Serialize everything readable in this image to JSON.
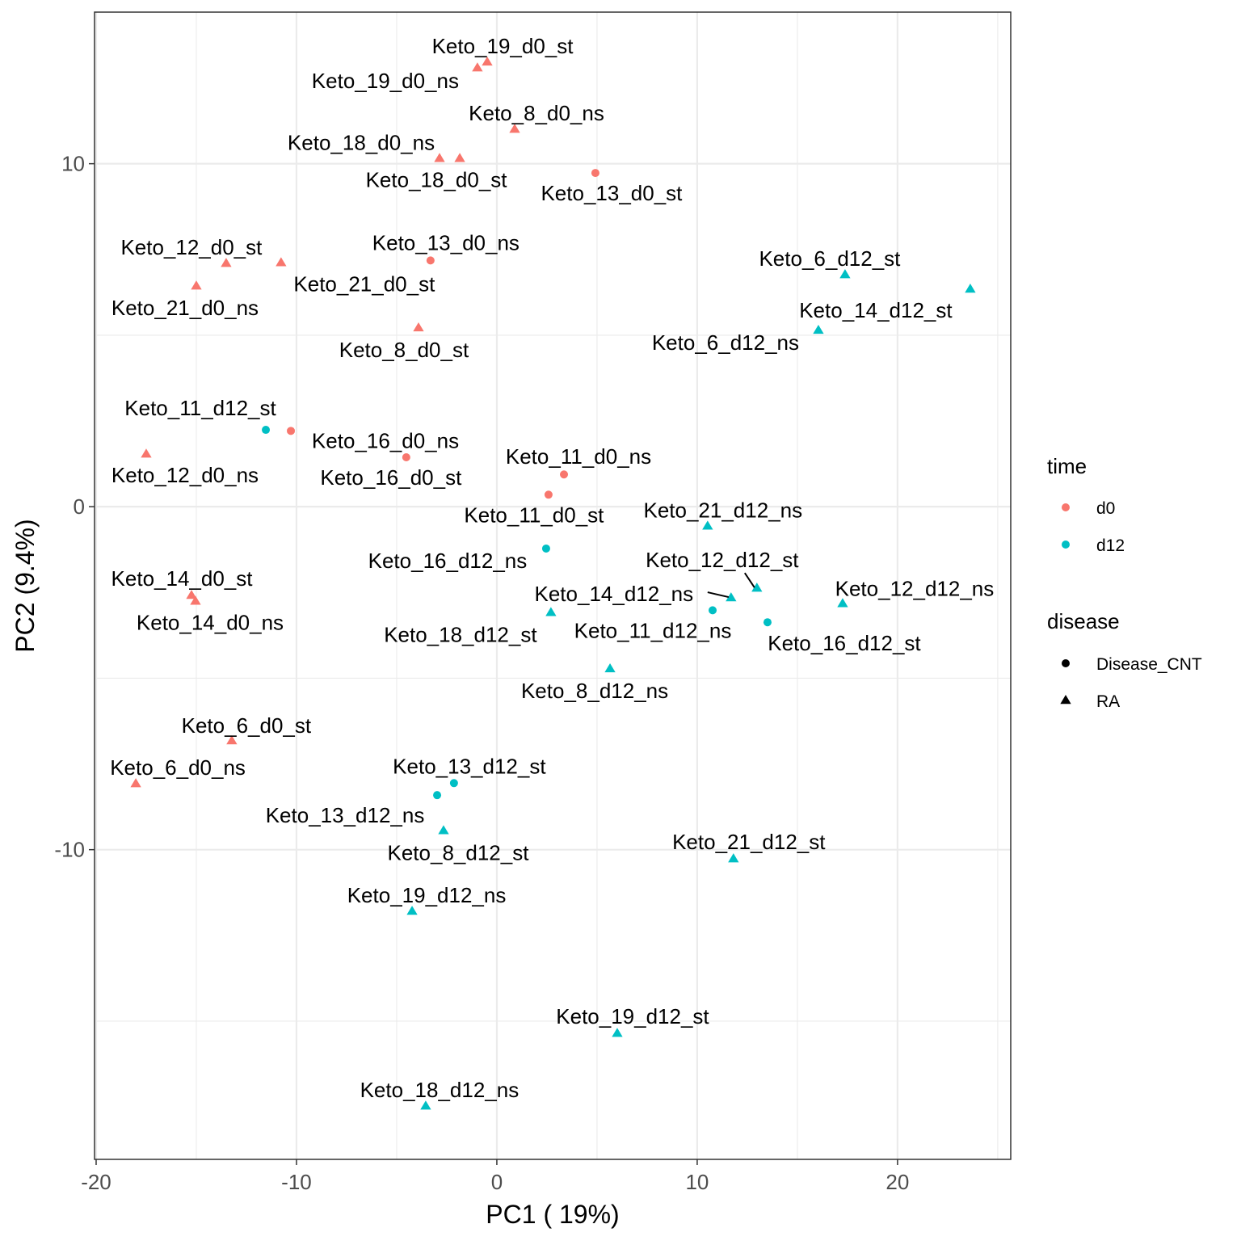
{
  "chart_data": {
    "type": "scatter",
    "title": "",
    "xlabel": "PC1 ( 19%)",
    "ylabel": "PC2 (9.4%)",
    "xlim": [
      -20.08,
      25.65
    ],
    "ylim": [
      -19.03,
      14.42
    ],
    "x_ticks": [
      -20,
      -10,
      0,
      10,
      20
    ],
    "y_ticks": [
      -10,
      0,
      10
    ],
    "grid": true,
    "legend_placement": "right",
    "legends": [
      {
        "title": "time",
        "entries": [
          {
            "label": "d0",
            "color": "#F8766D"
          },
          {
            "label": "d12",
            "color": "#00BFC4"
          }
        ]
      },
      {
        "title": "disease",
        "entries": [
          {
            "label": "Disease_CNT",
            "shape": "circle"
          },
          {
            "label": "RA",
            "shape": "triangle"
          }
        ]
      }
    ],
    "points": [
      {
        "label": "Keto_19_d0_st",
        "x": -0.48,
        "y": 12.96,
        "time": "d0",
        "disease": "RA"
      },
      {
        "label": "Keto_19_d0_ns",
        "x": -0.97,
        "y": 12.79,
        "time": "d0",
        "disease": "RA"
      },
      {
        "label": "Keto_8_d0_ns",
        "x": 0.89,
        "y": 11.0,
        "time": "d0",
        "disease": "RA"
      },
      {
        "label": "Keto_18_d0_ns",
        "x": -2.86,
        "y": 10.15,
        "time": "d0",
        "disease": "RA"
      },
      {
        "label": "Keto_18_d0_st",
        "x": -1.85,
        "y": 10.15,
        "time": "d0",
        "disease": "RA"
      },
      {
        "label": "Keto_13_d0_st",
        "x": 4.92,
        "y": 9.73,
        "time": "d0",
        "disease": "Disease_CNT"
      },
      {
        "label": "Keto_12_d0_st",
        "x": -13.51,
        "y": 7.09,
        "time": "d0",
        "disease": "RA"
      },
      {
        "label": "Keto_21_d0_st",
        "x": -10.77,
        "y": 7.11,
        "time": "d0",
        "disease": "RA"
      },
      {
        "label": "Keto_13_d0_ns",
        "x": -3.31,
        "y": 7.18,
        "time": "d0",
        "disease": "Disease_CNT"
      },
      {
        "label": "Keto_21_d0_ns",
        "x": -15.0,
        "y": 6.43,
        "time": "d0",
        "disease": "RA"
      },
      {
        "label": "Keto_8_d0_st",
        "x": -3.91,
        "y": 5.21,
        "time": "d0",
        "disease": "RA"
      },
      {
        "label": "Keto_6_d12_st",
        "x": 17.38,
        "y": 6.76,
        "time": "d12",
        "disease": "RA"
      },
      {
        "label": "Keto_14_d12_st",
        "x": 23.63,
        "y": 6.34,
        "time": "d12",
        "disease": "RA"
      },
      {
        "label": "Keto_6_d12_ns",
        "x": 16.05,
        "y": 5.14,
        "time": "d12",
        "disease": "RA"
      },
      {
        "label": "Keto_11_d12_st",
        "x": -11.53,
        "y": 2.24,
        "time": "d12",
        "disease": "Disease_CNT"
      },
      {
        "label": "Keto_16_d0_ns",
        "x": -10.28,
        "y": 2.21,
        "time": "d0",
        "disease": "Disease_CNT"
      },
      {
        "label": "Keto_12_d0_ns",
        "x": -17.5,
        "y": 1.53,
        "time": "d0",
        "disease": "RA"
      },
      {
        "label": "Keto_16_d0_st",
        "x": -4.52,
        "y": 1.44,
        "time": "d0",
        "disease": "Disease_CNT"
      },
      {
        "label": "Keto_11_d0_ns",
        "x": 3.35,
        "y": 0.94,
        "time": "d0",
        "disease": "Disease_CNT"
      },
      {
        "label": "Keto_11_d0_st",
        "x": 2.58,
        "y": 0.35,
        "time": "d0",
        "disease": "Disease_CNT"
      },
      {
        "label": "Keto_21_d12_ns",
        "x": 10.52,
        "y": -0.57,
        "time": "d12",
        "disease": "RA"
      },
      {
        "label": "Keto_16_d12_ns",
        "x": 2.46,
        "y": -1.22,
        "time": "d12",
        "disease": "Disease_CNT"
      },
      {
        "label": "Keto_12_d12_st",
        "x": 12.98,
        "y": -2.38,
        "time": "d12",
        "disease": "RA"
      },
      {
        "label": "Keto_14_d12_ns",
        "x": 11.69,
        "y": -2.66,
        "time": "d12",
        "disease": "RA"
      },
      {
        "label": "Keto_12_d12_ns",
        "x": 17.26,
        "y": -2.83,
        "time": "d12",
        "disease": "RA"
      },
      {
        "label": "Keto_18_d12_st",
        "x": 2.7,
        "y": -3.09,
        "time": "d12",
        "disease": "RA"
      },
      {
        "label": "Keto_11_d12_ns",
        "x": 10.77,
        "y": -3.02,
        "time": "d12",
        "disease": "Disease_CNT"
      },
      {
        "label": "Keto_16_d12_st",
        "x": 13.51,
        "y": -3.37,
        "time": "d12",
        "disease": "Disease_CNT"
      },
      {
        "label": "Keto_14_d0_st",
        "x": -15.24,
        "y": -2.59,
        "time": "d0",
        "disease": "RA"
      },
      {
        "label": "Keto_14_d0_ns",
        "x": -15.04,
        "y": -2.76,
        "time": "d0",
        "disease": "RA"
      },
      {
        "label": "Keto_8_d12_ns",
        "x": 5.65,
        "y": -4.73,
        "time": "d12",
        "disease": "RA"
      },
      {
        "label": "Keto_6_d0_st",
        "x": -13.23,
        "y": -6.83,
        "time": "d0",
        "disease": "RA"
      },
      {
        "label": "Keto_6_d0_ns",
        "x": -18.02,
        "y": -8.08,
        "time": "d0",
        "disease": "RA"
      },
      {
        "label": "Keto_13_d12_st",
        "x": -2.14,
        "y": -8.06,
        "time": "d12",
        "disease": "Disease_CNT"
      },
      {
        "label": "Keto_13_d12_ns",
        "x": -2.98,
        "y": -8.41,
        "time": "d12",
        "disease": "Disease_CNT"
      },
      {
        "label": "Keto_8_d12_st",
        "x": -2.66,
        "y": -9.45,
        "time": "d12",
        "disease": "RA"
      },
      {
        "label": "Keto_21_d12_st",
        "x": 11.81,
        "y": -10.27,
        "time": "d12",
        "disease": "RA"
      },
      {
        "label": "Keto_19_d12_ns",
        "x": -4.23,
        "y": -11.8,
        "time": "d12",
        "disease": "RA"
      },
      {
        "label": "Keto_19_d12_st",
        "x": 6.01,
        "y": -15.36,
        "time": "d12",
        "disease": "RA"
      },
      {
        "label": "Keto_18_d12_ns",
        "x": -3.55,
        "y": -17.48,
        "time": "d12",
        "disease": "RA"
      }
    ]
  }
}
